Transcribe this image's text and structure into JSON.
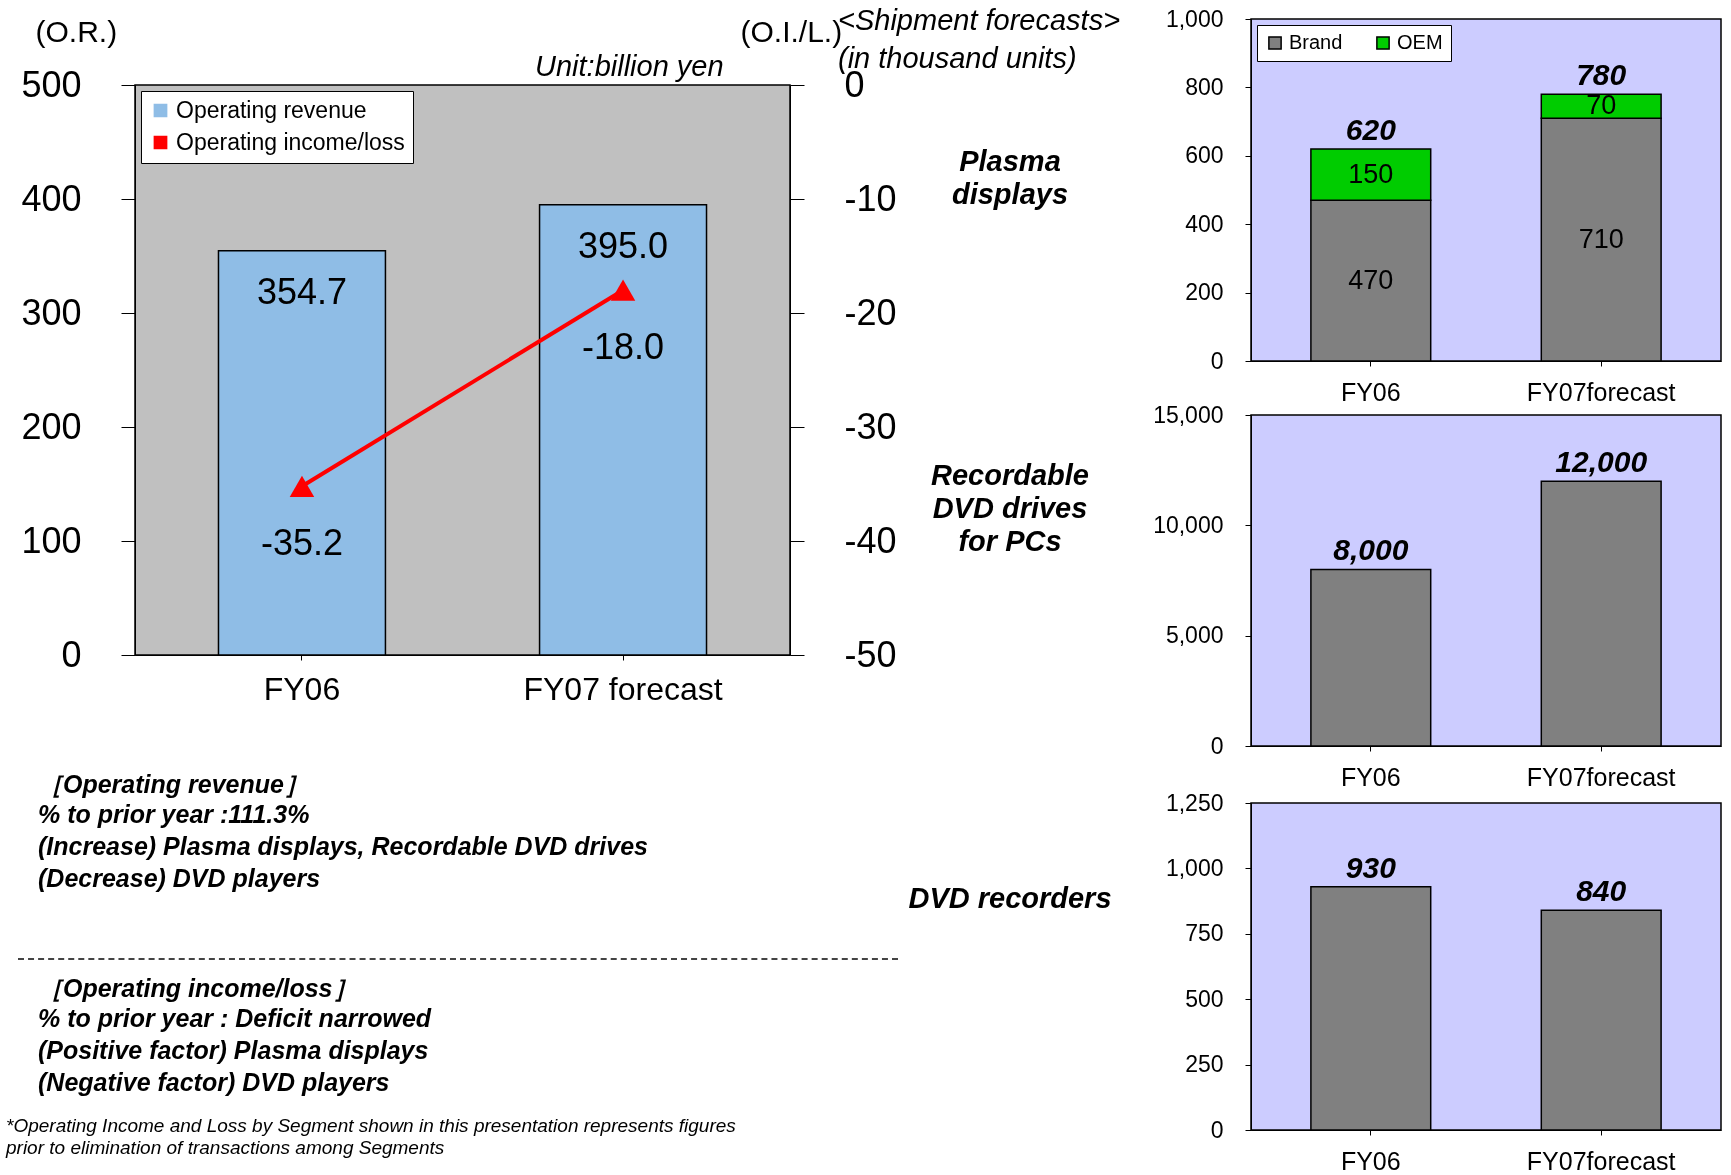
{
  "chart_data": [
    {
      "type": "bar",
      "categories": [
        "FY06",
        "FY07 forecast"
      ],
      "ylabel": "(O.R.)",
      "y2label": "(O.I./L.)",
      "series": [
        {
          "name": "Operating revenue",
          "color": "#8fbde6",
          "values": [
            354.7,
            395.0
          ],
          "value_labels": [
            "354.7",
            "395.0"
          ]
        },
        {
          "name": "Operating income/loss",
          "type": "line",
          "axis": "y2",
          "color": "#ff0000",
          "marker": "triangle",
          "values": [
            -35.2,
            -18.0
          ],
          "value_labels": [
            "-35.2",
            "-18.0"
          ]
        }
      ],
      "ylim": [
        0,
        500
      ],
      "yticks": [
        0,
        100,
        200,
        300,
        400,
        500
      ],
      "y2lim": [
        -50,
        0
      ],
      "y2ticks": [
        -50,
        -40,
        -30,
        -20,
        -10,
        0
      ],
      "legend": "top left",
      "annotations": [
        "Unit:billion yen",
        "［Operating revenue］",
        "% to prior year :111.3%",
        "(Increase)  Plasma displays, Recordable DVD drives",
        "(Decrease)  DVD players",
        "［Operating income/loss］",
        "% to prior year : Deficit narrowed",
        "(Positive factor)  Plasma displays",
        "(Negative factor)  DVD players",
        "*Operating Income and Loss by Segment shown in this presentation represents figures prior to elimination of transactions among Segments"
      ]
    },
    {
      "type": "bar",
      "title": "Plasma displays",
      "categories": [
        "FY06",
        "FY07forecast"
      ],
      "stacked": true,
      "series": [
        {
          "name": "Brand",
          "color": "#808080",
          "values": [
            470,
            710
          ],
          "value_labels": [
            "470",
            "710"
          ]
        },
        {
          "name": "OEM",
          "color": "#00cc00",
          "values": [
            150,
            70
          ],
          "value_labels": [
            "150",
            "70"
          ]
        }
      ],
      "totals": [
        "620",
        "780"
      ],
      "ylim": [
        0,
        1000
      ],
      "yticks": [
        0,
        200,
        400,
        600,
        800,
        {
          "value": 1000,
          "label": "1,000"
        }
      ],
      "legend": "top left",
      "annotations": [
        "<Shipment forecasts>",
        "(in thousand units)"
      ]
    },
    {
      "type": "bar",
      "title": "Recordable DVD drives for PCs",
      "categories": [
        "FY06",
        "FY07forecast"
      ],
      "series": [
        {
          "color": "#808080",
          "values": [
            8000,
            12000
          ],
          "value_labels": [
            "8,000",
            "12,000"
          ]
        }
      ],
      "ylim": [
        0,
        15000
      ],
      "yticks": [
        0,
        {
          "value": 5000,
          "label": "5,000"
        },
        {
          "value": 10000,
          "label": "10,000"
        },
        {
          "value": 15000,
          "label": "15,000"
        }
      ]
    },
    {
      "type": "bar",
      "title": "DVD recorders",
      "categories": [
        "FY06",
        "FY07forecast"
      ],
      "series": [
        {
          "color": "#808080",
          "values": [
            930,
            840
          ],
          "value_labels": [
            "930",
            "840"
          ]
        }
      ],
      "ylim": [
        0,
        1250
      ],
      "yticks": [
        0,
        250,
        500,
        750,
        {
          "value": 1000,
          "label": "1,000"
        },
        {
          "value": 1250,
          "label": "1,250"
        }
      ]
    }
  ]
}
